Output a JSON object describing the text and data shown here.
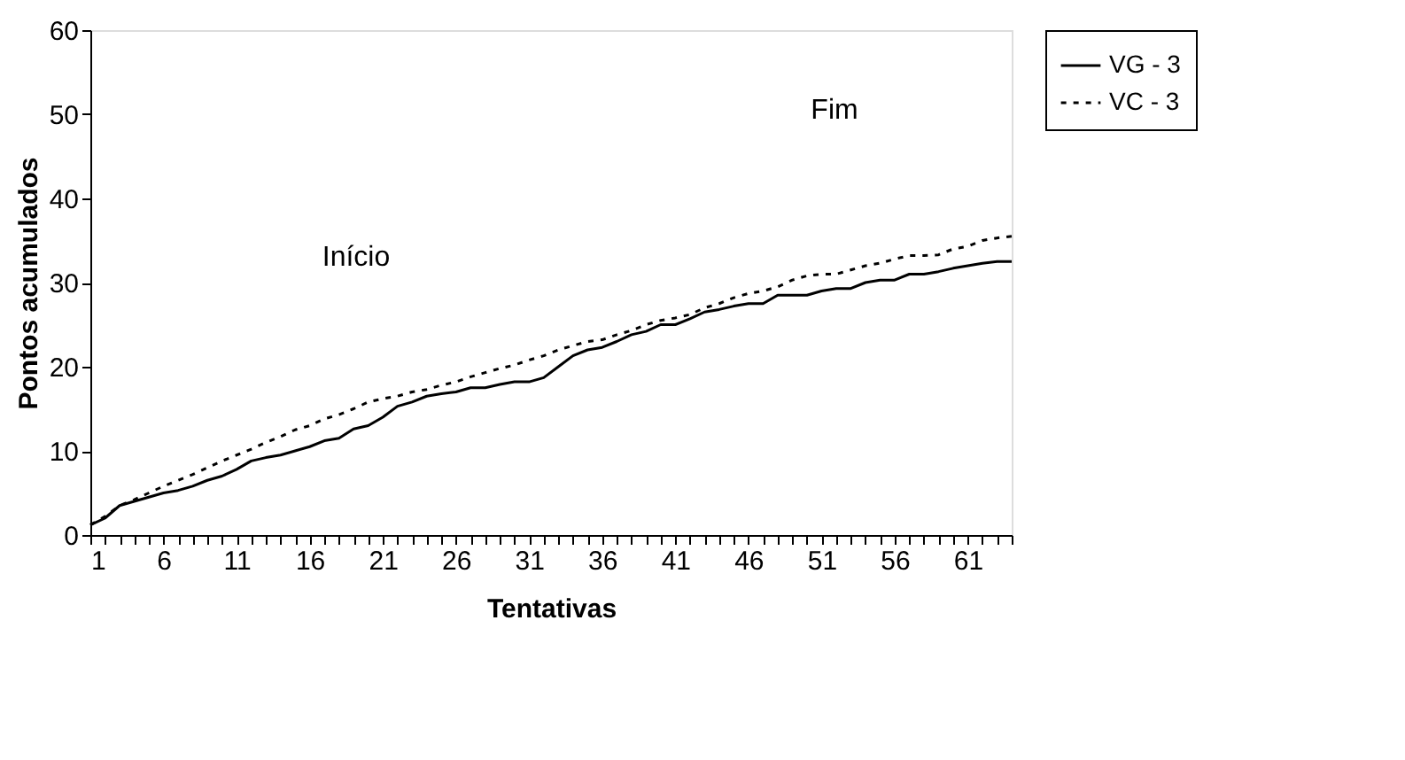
{
  "chart_data": {
    "type": "line",
    "xlabel": "Tentativas",
    "ylabel": "Pontos acumulados",
    "x": [
      1,
      2,
      3,
      4,
      5,
      6,
      7,
      8,
      9,
      10,
      11,
      12,
      13,
      14,
      15,
      16,
      17,
      18,
      19,
      20,
      21,
      22,
      23,
      24,
      25,
      26,
      27,
      28,
      29,
      30,
      31,
      32,
      33,
      34,
      35,
      36,
      37,
      38,
      39,
      40,
      41,
      42,
      43,
      44,
      45,
      46,
      47,
      48,
      49,
      50,
      51,
      52,
      53,
      54,
      55,
      56,
      57,
      58,
      59,
      60,
      61,
      62,
      63,
      64
    ],
    "series": [
      {
        "name": "VG - 3",
        "color": "#000000",
        "line_style": "solid",
        "values": [
          1.2,
          2,
          3.5,
          4,
          4.5,
          5,
          5.3,
          5.8,
          6.5,
          7,
          7.8,
          8.8,
          9.2,
          9.5,
          10,
          10.5,
          11.2,
          11.5,
          12.6,
          13,
          14,
          15.3,
          15.8,
          16.5,
          16.8,
          17,
          17.5,
          17.5,
          17.9,
          18.2,
          18.2,
          18.7,
          20,
          21.3,
          22,
          22.3,
          23,
          23.8,
          24.2,
          25,
          25,
          25.7,
          26.5,
          26.8,
          27.2,
          27.5,
          27.5,
          28.5,
          28.5,
          28.5,
          29,
          29.3,
          29.3,
          30,
          30.3,
          30.3,
          31,
          31,
          31.3,
          31.7,
          32,
          32.3,
          32.5,
          32.5
        ]
      },
      {
        "name": "VC - 3",
        "color": "#000000",
        "line_style": "dotted",
        "values": [
          1.2,
          2.2,
          3.5,
          4.2,
          5,
          5.8,
          6.5,
          7.2,
          8,
          8.8,
          9.5,
          10.2,
          11,
          11.7,
          12.5,
          13,
          13.8,
          14.3,
          15,
          15.8,
          16.2,
          16.5,
          17,
          17.3,
          17.8,
          18.2,
          18.8,
          19.3,
          19.8,
          20.2,
          20.8,
          21.3,
          22,
          22.5,
          23,
          23.2,
          23.8,
          24.3,
          25,
          25.5,
          25.8,
          26.2,
          27,
          27.5,
          28.2,
          28.7,
          29,
          29.5,
          30.3,
          30.8,
          31,
          31,
          31.5,
          32,
          32.3,
          32.8,
          33.2,
          33.2,
          33.3,
          34,
          34.3,
          35,
          35.3,
          35.5
        ]
      }
    ],
    "annotations": [
      "Início",
      "Fim"
    ],
    "xlim": [
      1,
      64
    ],
    "xticks": [
      1,
      {
        "value": 2,
        "label": null
      },
      {
        "value": 3,
        "label": null
      },
      {
        "value": 4,
        "label": null
      },
      {
        "value": 5,
        "label": null
      },
      6,
      {
        "value": 7,
        "label": null
      },
      {
        "value": 8,
        "label": null
      },
      {
        "value": 9,
        "label": null
      },
      {
        "value": 10,
        "label": null
      },
      11,
      {
        "value": 12,
        "label": null
      },
      {
        "value": 13,
        "label": null
      },
      {
        "value": 14,
        "label": null
      },
      {
        "value": 15,
        "label": null
      },
      16,
      {
        "value": 17,
        "label": null
      },
      {
        "value": 18,
        "label": null
      },
      {
        "value": 19,
        "label": null
      },
      {
        "value": 20,
        "label": null
      },
      21,
      {
        "value": 22,
        "label": null
      },
      {
        "value": 23,
        "label": null
      },
      {
        "value": 24,
        "label": null
      },
      {
        "value": 25,
        "label": null
      },
      26,
      {
        "value": 27,
        "label": null
      },
      {
        "value": 28,
        "label": null
      },
      {
        "value": 29,
        "label": null
      },
      {
        "value": 30,
        "label": null
      },
      31,
      {
        "value": 32,
        "label": null
      },
      {
        "value": 33,
        "label": null
      },
      {
        "value": 34,
        "label": null
      },
      {
        "value": 35,
        "label": null
      },
      36,
      {
        "value": 37,
        "label": null
      },
      {
        "value": 38,
        "label": null
      },
      {
        "value": 39,
        "label": null
      },
      {
        "value": 40,
        "label": null
      },
      41,
      {
        "value": 42,
        "label": null
      },
      {
        "value": 43,
        "label": null
      },
      {
        "value": 44,
        "label": null
      },
      {
        "value": 45,
        "label": null
      },
      46,
      {
        "value": 47,
        "label": null
      },
      {
        "value": 48,
        "label": null
      },
      {
        "value": 49,
        "label": null
      },
      {
        "value": 50,
        "label": null
      },
      51,
      {
        "value": 52,
        "label": null
      },
      {
        "value": 53,
        "label": null
      },
      {
        "value": 54,
        "label": null
      },
      {
        "value": 55,
        "label": null
      },
      56,
      {
        "value": 57,
        "label": null
      },
      {
        "value": 58,
        "label": null
      },
      {
        "value": 59,
        "label": null
      },
      {
        "value": 60,
        "label": null
      },
      61,
      {
        "value": 62,
        "label": null
      },
      {
        "value": 63,
        "label": null
      },
      {
        "value": 64,
        "label": null
      }
    ],
    "ylim": [
      0,
      60
    ],
    "yticks": [
      0,
      10,
      20,
      30,
      40,
      50,
      60
    ],
    "grid": false,
    "legend": "right",
    "marker": "none"
  }
}
